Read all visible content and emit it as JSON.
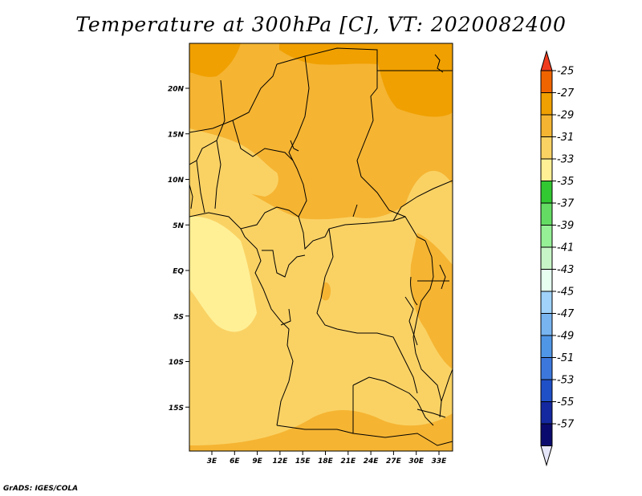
{
  "title": "Temperature at 300hPa [C], VT: 2020082400",
  "credit": "GrADS: IGES/COLA",
  "map": {
    "lat_labels": [
      "20N",
      "15N",
      "10N",
      "5N",
      "EQ",
      "5S",
      "10S",
      "15S"
    ],
    "lon_labels": [
      "3E",
      "6E",
      "9E",
      "12E",
      "15E",
      "18E",
      "21E",
      "24E",
      "27E",
      "30E",
      "33E"
    ]
  },
  "colorbar": {
    "labels": [
      "-25",
      "-27",
      "-29",
      "-31",
      "-33",
      "-35",
      "-37",
      "-39",
      "-41",
      "-43",
      "-45",
      "-47",
      "-49",
      "-51",
      "-53",
      "-55",
      "-57"
    ],
    "colors": [
      "#f03c1e",
      "#f06400",
      "#f0a000",
      "#f5b432",
      "#fad264",
      "#fff096",
      "#32c832",
      "#64dc64",
      "#96f096",
      "#c8f5c8",
      "#e6fff0",
      "#a0d2fa",
      "#78b4f0",
      "#5096e6",
      "#3c78dc",
      "#2050c8",
      "#1428a0",
      "#0a0a6e",
      "#e6e6fa"
    ]
  }
}
